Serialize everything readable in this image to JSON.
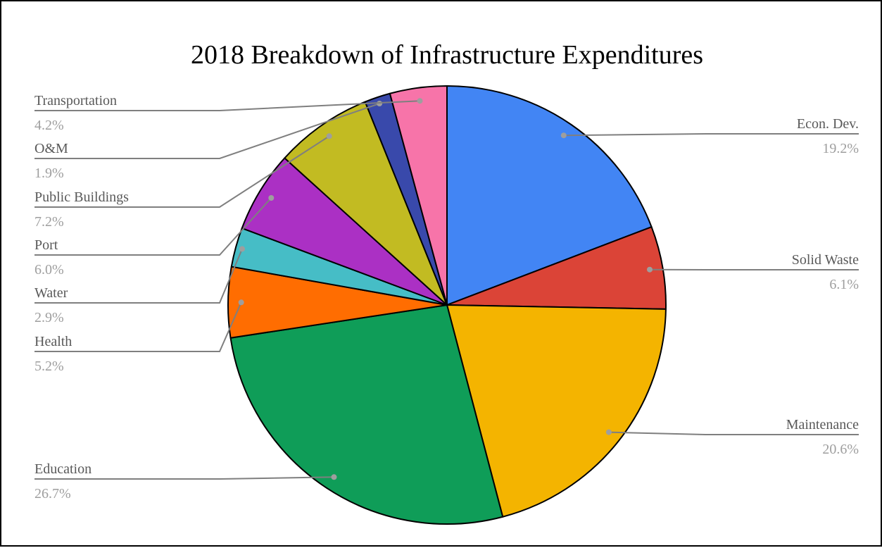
{
  "chart_data": {
    "type": "pie",
    "title": "2018 Breakdown of Infrastructure Expenditures",
    "start_angle_deg": 0,
    "direction": "clockwise",
    "slices": [
      {
        "label": "Econ. Dev.",
        "value": 19.2,
        "value_label": "19.2%",
        "color": "#4285f4"
      },
      {
        "label": "Solid Waste",
        "value": 6.1,
        "value_label": "6.1%",
        "color": "#db4437"
      },
      {
        "label": "Maintenance",
        "value": 20.6,
        "value_label": "20.6%",
        "color": "#f4b400"
      },
      {
        "label": "Education",
        "value": 26.7,
        "value_label": "26.7%",
        "color": "#0f9d58"
      },
      {
        "label": "Health",
        "value": 5.2,
        "value_label": "5.2%",
        "color": "#ff6d01"
      },
      {
        "label": "Water",
        "value": 2.9,
        "value_label": "2.9%",
        "color": "#46bdc6"
      },
      {
        "label": "Port",
        "value": 6.0,
        "value_label": "6.0%",
        "color": "#ab30c4"
      },
      {
        "label": "Public Buildings",
        "value": 7.2,
        "value_label": "7.2%",
        "color": "#c2bb22"
      },
      {
        "label": "O&M",
        "value": 1.9,
        "value_label": "1.9%",
        "color": "#3949ab"
      },
      {
        "label": "Transportation",
        "value": 4.2,
        "value_label": "4.2%",
        "color": "#f774a9"
      }
    ]
  }
}
